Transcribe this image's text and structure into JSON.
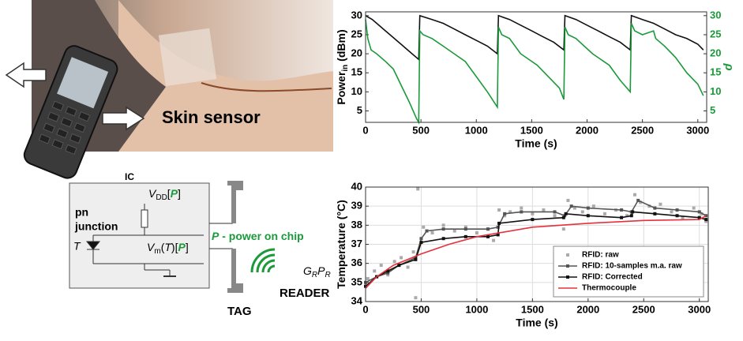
{
  "photo": {
    "label": "Skin sensor"
  },
  "diagram": {
    "ic": "IC",
    "pn": "pn",
    "junction": "junction",
    "t": "T",
    "vdd": [
      "V",
      "DD",
      "[",
      "P",
      "]"
    ],
    "vm": [
      "V",
      "m",
      "(",
      "T",
      ")[",
      "P",
      "]"
    ],
    "power_label": [
      "P",
      " - power on chip"
    ],
    "tag": "TAG",
    "reader": "READER",
    "gain": [
      "G",
      "R",
      "P",
      "R"
    ]
  },
  "chart_data": [
    {
      "type": "line",
      "xlabel": "Time (s)",
      "ylabel": [
        "Power",
        "in",
        " (dBm)"
      ],
      "y2label": "ρ",
      "xlim": [
        0,
        3080
      ],
      "xticks": [
        0,
        500,
        1000,
        1500,
        2000,
        2500,
        3000
      ],
      "ylim": [
        2,
        31
      ],
      "yticks": [
        5,
        10,
        15,
        20,
        25,
        30
      ],
      "y2lim": [
        2,
        31
      ],
      "y2ticks": [
        5,
        10,
        15,
        20,
        25,
        30
      ],
      "grid": false,
      "series": [
        {
          "name": "Power",
          "color": "#111111",
          "style": "line",
          "x": [
            0,
            60,
            120,
            180,
            240,
            300,
            360,
            420,
            480,
            490,
            600,
            700,
            800,
            900,
            1000,
            1100,
            1190,
            1200,
            1300,
            1400,
            1500,
            1600,
            1700,
            1790,
            1800,
            1900,
            2000,
            2100,
            2200,
            2300,
            2390,
            2400,
            2500,
            2600,
            2700,
            2800,
            2900,
            3000,
            3050
          ],
          "values": [
            30,
            29,
            27.5,
            26,
            24.5,
            23,
            21.5,
            20,
            18.5,
            30,
            29,
            28,
            26.5,
            25,
            23.5,
            22,
            20,
            30,
            29,
            27.5,
            26,
            24.5,
            23,
            21,
            30,
            29,
            27.5,
            26,
            24.5,
            23,
            21,
            30,
            29,
            28,
            26.5,
            25,
            24,
            22.5,
            21
          ]
        },
        {
          "name": "ρ",
          "color": "#1a9a3a",
          "style": "line",
          "axis": "y2",
          "x": [
            0,
            20,
            50,
            100,
            180,
            250,
            300,
            350,
            400,
            460,
            480,
            490,
            520,
            600,
            700,
            800,
            900,
            1000,
            1100,
            1190,
            1200,
            1230,
            1300,
            1400,
            1550,
            1650,
            1750,
            1790,
            1800,
            1830,
            1900,
            2050,
            2200,
            2300,
            2390,
            2400,
            2430,
            2500,
            2600,
            2620,
            2700,
            2800,
            2900,
            3000,
            3050
          ],
          "values": [
            29,
            24,
            21,
            20,
            18,
            16,
            13,
            10,
            7,
            3,
            2,
            26,
            25,
            24,
            22,
            20,
            18,
            14,
            10,
            6,
            27,
            25,
            24,
            20,
            17,
            14,
            11,
            8,
            27,
            25,
            24,
            20,
            17,
            13,
            10,
            28,
            26,
            25,
            26,
            24,
            22,
            19,
            15,
            12,
            9
          ]
        }
      ]
    },
    {
      "type": "line",
      "xlabel": "Time (s)",
      "ylabel": [
        "Temperature (°C)"
      ],
      "xlim": [
        0,
        3080
      ],
      "xticks": [
        0,
        500,
        1000,
        1500,
        2000,
        2500,
        3000
      ],
      "ylim": [
        34,
        40
      ],
      "yticks": [
        34,
        35,
        36,
        37,
        38,
        39,
        40
      ],
      "grid": true,
      "legend": "lower right",
      "series": [
        {
          "name": "RFID: raw",
          "color": "#aaaaaa",
          "style": "markers",
          "x": [
            20,
            80,
            140,
            200,
            260,
            320,
            380,
            430,
            450,
            470,
            520,
            600,
            700,
            800,
            900,
            1000,
            1100,
            1150,
            1200,
            1250,
            1300,
            1400,
            1500,
            1600,
            1700,
            1780,
            1820,
            1880,
            1950,
            2050,
            2150,
            2250,
            2350,
            2420,
            2470,
            2550,
            2600,
            2650,
            2750,
            2850,
            2950,
            3020,
            3060
          ],
          "values": [
            35.2,
            35.6,
            35.9,
            35.4,
            36.1,
            36.3,
            35.8,
            36.6,
            34.2,
            39.9,
            37.9,
            37.6,
            38.0,
            37.7,
            37.9,
            37.6,
            37.8,
            37.2,
            38.8,
            38.5,
            38.7,
            38.9,
            38.6,
            38.8,
            38.5,
            37.8,
            39.3,
            38.9,
            38.7,
            39.0,
            38.6,
            38.8,
            38.5,
            39.6,
            39.2,
            39.0,
            38.6,
            39.1,
            38.7,
            38.4,
            38.9,
            38.6,
            38.2
          ]
        },
        {
          "name": "RFID: 10-samples m.a. raw",
          "color": "#555555",
          "style": "line+markers",
          "x": [
            0,
            100,
            200,
            300,
            450,
            500,
            550,
            700,
            900,
            1100,
            1190,
            1250,
            1400,
            1700,
            1790,
            1850,
            2000,
            2300,
            2390,
            2450,
            2600,
            2800,
            3000,
            3060
          ],
          "values": [
            35.0,
            35.3,
            35.5,
            35.9,
            36.3,
            37.3,
            37.7,
            37.8,
            37.8,
            37.8,
            37.9,
            38.6,
            38.7,
            38.7,
            38.5,
            39.0,
            38.9,
            38.8,
            38.7,
            39.3,
            38.9,
            38.8,
            38.7,
            38.5
          ]
        },
        {
          "name": "RFID: Corrected",
          "color": "#111111",
          "style": "line+markers",
          "x": [
            0,
            100,
            200,
            300,
            450,
            500,
            700,
            900,
            1100,
            1190,
            1200,
            1500,
            1780,
            1800,
            2000,
            2300,
            2390,
            2400,
            2600,
            2800,
            3000,
            3060
          ],
          "values": [
            34.8,
            35.3,
            35.6,
            35.9,
            36.2,
            37.1,
            37.3,
            37.4,
            37.4,
            37.5,
            38.1,
            38.3,
            38.4,
            38.6,
            38.5,
            38.4,
            38.5,
            38.7,
            38.6,
            38.5,
            38.4,
            38.3
          ]
        },
        {
          "name": "Thermocouple",
          "color": "#e8303a",
          "style": "line",
          "x": [
            0,
            100,
            250,
            500,
            750,
            1000,
            1500,
            2000,
            2500,
            3000,
            3060
          ],
          "values": [
            34.7,
            35.3,
            35.9,
            36.5,
            37.0,
            37.4,
            37.9,
            38.1,
            38.25,
            38.3,
            38.5
          ]
        }
      ]
    }
  ]
}
